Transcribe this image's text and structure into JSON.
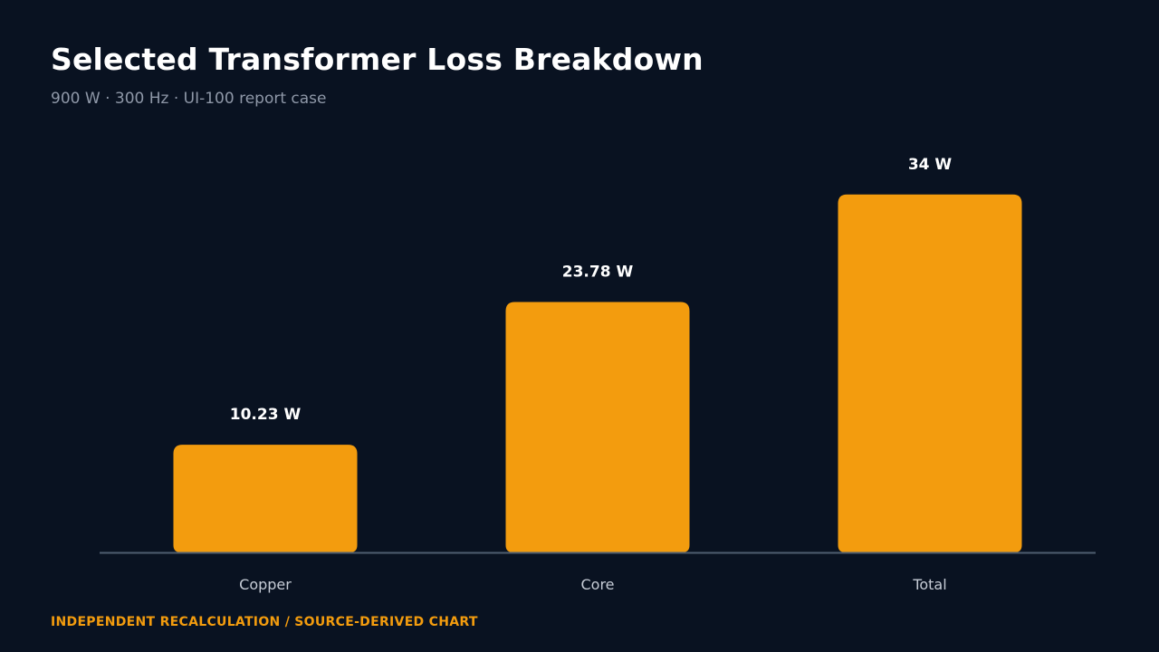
{
  "header": {
    "title": "Selected Transformer Loss Breakdown",
    "subtitle": "900 W · 300 Hz · UI-100 report case"
  },
  "footer": {
    "note": "INDEPENDENT RECALCULATION / SOURCE-DERIVED CHART"
  },
  "chart_data": {
    "type": "bar",
    "categories": [
      "Copper",
      "Core",
      "Total"
    ],
    "values": [
      10.23,
      23.78,
      34
    ],
    "data_labels": [
      "10.23 W",
      "23.78 W",
      "34 W"
    ],
    "unit": "W",
    "ylim": [
      0,
      40
    ],
    "grid": false,
    "legend": "none",
    "colors": {
      "bar": "#f39c0e",
      "axis": "#4e5d70",
      "category_label": "#c6ccd6",
      "value_label": "#ffffff"
    }
  }
}
